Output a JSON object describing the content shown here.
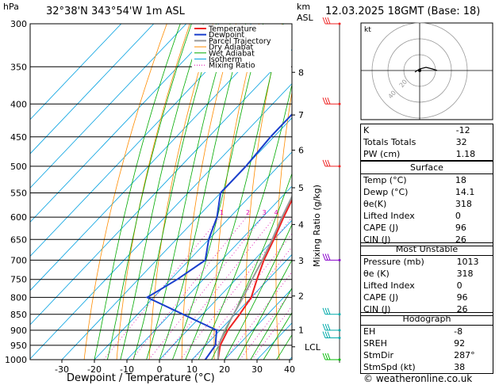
{
  "header": {
    "unit_pressure": "hPa",
    "location": "32°38'N 343°54'W 1m ASL",
    "unit_km": "km",
    "unit_asl": "ASL",
    "datetime": "12.03.2025 18GMT (Base: 18)"
  },
  "chart_data": {
    "type": "line",
    "xlabel": "Dewpoint / Temperature (°C)",
    "ylabel": "hPa",
    "right_axis_label": "Mixing Ratio (g/kg)",
    "xlim": [
      -35,
      40
    ],
    "ylim": [
      1000,
      300
    ],
    "y_scale": "log",
    "x_ticks": [
      -30,
      -20,
      -10,
      0,
      10,
      20,
      30,
      40
    ],
    "pressure_levels": [
      300,
      350,
      400,
      450,
      500,
      550,
      600,
      650,
      700,
      750,
      800,
      850,
      900,
      950,
      1000
    ],
    "height_km": [
      {
        "km": "8",
        "p": 357
      },
      {
        "km": "7",
        "p": 416
      },
      {
        "km": "6",
        "p": 472
      },
      {
        "km": "5",
        "p": 540
      },
      {
        "km": "4",
        "p": 616
      },
      {
        "km": "3",
        "p": 701
      },
      {
        "km": "2",
        "p": 796
      },
      {
        "km": "1",
        "p": 899
      },
      {
        "km": "LCL",
        "p": 955
      }
    ],
    "mixing_ratios": [
      "1",
      "2",
      "3",
      "4",
      "6",
      "8",
      "10",
      "15",
      "20",
      "25"
    ],
    "legend": [
      "Temperature",
      "Dewpoint",
      "Parcel Trajectory",
      "Dry Adiabat",
      "Wet Adiabat",
      "Isotherm",
      "Mixing Ratio"
    ],
    "series": [
      {
        "name": "Temperature",
        "color": "#ee2222",
        "points": [
          [
            1000,
            18
          ],
          [
            950,
            14.5
          ],
          [
            900,
            12.4
          ],
          [
            850,
            11.4
          ],
          [
            800,
            10
          ],
          [
            750,
            6.5
          ],
          [
            700,
            3
          ],
          [
            650,
            0
          ],
          [
            600,
            -3.5
          ],
          [
            550,
            -7
          ],
          [
            500,
            -11.5
          ],
          [
            450,
            -17
          ],
          [
            400,
            -23
          ],
          [
            350,
            -30
          ],
          [
            300,
            -39
          ]
        ]
      },
      {
        "name": "Dewpoint",
        "color": "#1a3fcc",
        "points": [
          [
            1000,
            14.1
          ],
          [
            950,
            13
          ],
          [
            900,
            9
          ],
          [
            850,
            -6
          ],
          [
            800,
            -22
          ],
          [
            750,
            -18
          ],
          [
            700,
            -15
          ],
          [
            650,
            -20
          ],
          [
            600,
            -24
          ],
          [
            550,
            -30
          ],
          [
            500,
            -30
          ],
          [
            450,
            -31
          ],
          [
            400,
            -31
          ],
          [
            350,
            -34
          ],
          [
            300,
            -43
          ]
        ]
      },
      {
        "name": "Parcel Trajectory",
        "color": "#999999",
        "points": [
          [
            1000,
            18
          ],
          [
            950,
            14
          ],
          [
            900,
            11.5
          ],
          [
            850,
            9.5
          ],
          [
            800,
            7.5
          ],
          [
            750,
            5
          ],
          [
            700,
            2.5
          ],
          [
            650,
            -0.5
          ],
          [
            600,
            -4
          ],
          [
            550,
            -7.5
          ],
          [
            500,
            -12
          ],
          [
            450,
            -17.5
          ],
          [
            400,
            -24
          ],
          [
            350,
            -31.5
          ],
          [
            300,
            -41
          ]
        ]
      }
    ]
  },
  "indices": [
    {
      "label": "K",
      "value": "-12"
    },
    {
      "label": "Totals Totals",
      "value": "32"
    },
    {
      "label": "PW (cm)",
      "value": "1.18"
    }
  ],
  "surface": {
    "title": "Surface",
    "rows": [
      {
        "label": "Temp (°C)",
        "value": "18"
      },
      {
        "label": "Dewp (°C)",
        "value": "14.1"
      },
      {
        "label": "θe(K)",
        "value": "318"
      },
      {
        "label": "Lifted Index",
        "value": "0"
      },
      {
        "label": "CAPE (J)",
        "value": "96"
      },
      {
        "label": "CIN (J)",
        "value": "26"
      }
    ]
  },
  "most_unstable": {
    "title": "Most Unstable",
    "rows": [
      {
        "label": "Pressure (mb)",
        "value": "1013"
      },
      {
        "label": "θe (K)",
        "value": "318"
      },
      {
        "label": "Lifted Index",
        "value": "0"
      },
      {
        "label": "CAPE (J)",
        "value": "96"
      },
      {
        "label": "CIN (J)",
        "value": "26"
      }
    ]
  },
  "hodograph": {
    "title": "Hodograph",
    "unit": "kt",
    "ring_labels": [
      "20",
      "40"
    ],
    "rows": [
      {
        "label": "EH",
        "value": "-8"
      },
      {
        "label": "SREH",
        "value": "92"
      },
      {
        "label": "StmDir",
        "value": "287°"
      },
      {
        "label": "StmSpd (kt)",
        "value": "38"
      }
    ]
  },
  "colors": {
    "temperature": "#ee2222",
    "dewpoint": "#1a3fcc",
    "parcel": "#999999",
    "dry_adiabat": "#ff8c00",
    "wet_adiabat": "#00aa00",
    "isotherm": "#00a0e0",
    "mixing_ratio": "#dd00aa"
  },
  "footer": {
    "copyright": "© weatheronline.co.uk"
  }
}
